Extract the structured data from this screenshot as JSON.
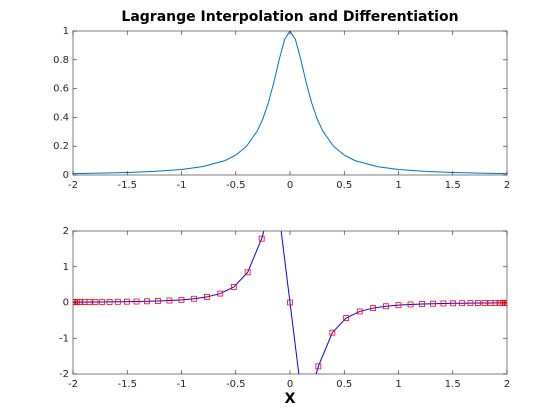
{
  "chart_data": [
    {
      "type": "line",
      "title": "Lagrange Interpolation and Differentiation",
      "x": [
        -2,
        -1.75,
        -1.5,
        -1.25,
        -1,
        -0.8,
        -0.6,
        -0.5,
        -0.4,
        -0.3,
        -0.25,
        -0.2,
        -0.15,
        -0.1,
        -0.05,
        0,
        0.05,
        0.1,
        0.15,
        0.2,
        0.25,
        0.3,
        0.4,
        0.5,
        0.6,
        0.8,
        1,
        1.25,
        1.5,
        1.75,
        2
      ],
      "series": [
        {
          "color": "#0072bd",
          "values": [
            0.0099,
            0.0129,
            0.0175,
            0.025,
            0.0385,
            0.0588,
            0.1,
            0.138,
            0.2,
            0.308,
            0.39,
            0.5,
            0.64,
            0.8,
            0.941,
            1,
            0.941,
            0.8,
            0.64,
            0.5,
            0.39,
            0.308,
            0.2,
            0.138,
            0.1,
            0.0588,
            0.0385,
            0.025,
            0.0175,
            0.0129,
            0.0099
          ]
        }
      ],
      "xlim": [
        -2,
        2
      ],
      "xticks": [
        -2,
        -1.5,
        -1,
        -0.5,
        0,
        0.5,
        1,
        1.5,
        2
      ],
      "ylim": [
        0,
        1
      ],
      "yticks": [
        0,
        0.2,
        0.4,
        0.6,
        0.8,
        1
      ]
    },
    {
      "type": "line",
      "xlabel": "X",
      "x": [
        -2,
        -1.9957,
        -1.9829,
        -1.9616,
        -1.9319,
        -1.8939,
        -1.8478,
        -1.7937,
        -1.7321,
        -1.6629,
        -1.5867,
        -1.5037,
        -1.4142,
        -1.3187,
        -1.2175,
        -1.1111,
        -1,
        -0.8846,
        -0.7654,
        -0.6429,
        -0.5176,
        -0.3902,
        -0.2611,
        -0.1308,
        0,
        0.1308,
        0.2611,
        0.3902,
        0.5176,
        0.6429,
        0.7654,
        0.8846,
        1,
        1.1111,
        1.2175,
        1.3187,
        1.4142,
        1.5037,
        1.5867,
        1.6629,
        1.7321,
        1.7937,
        1.8478,
        1.8939,
        1.9319,
        1.9616,
        1.9829,
        1.9957,
        2
      ],
      "series": [
        {
          "color": "#0000ff",
          "marker": "square",
          "marker_color": "#ff0000",
          "values": [
            0.0098,
            0.0099,
            0.0101,
            0.0104,
            0.0109,
            0.0115,
            0.0124,
            0.0135,
            0.015,
            0.0169,
            0.0194,
            0.0227,
            0.0272,
            0.0333,
            0.042,
            0.0547,
            0.074,
            0.1046,
            0.156,
            0.25,
            0.436,
            0.844,
            1.786,
            3.21,
            0,
            -3.21,
            -1.786,
            -0.844,
            -0.436,
            -0.25,
            -0.156,
            -0.1046,
            -0.074,
            -0.0547,
            -0.042,
            -0.0333,
            -0.0272,
            -0.0227,
            -0.0194,
            -0.0169,
            -0.015,
            -0.0135,
            -0.0124,
            -0.0115,
            -0.0109,
            -0.0104,
            -0.0101,
            -0.0099,
            -0.0098
          ]
        }
      ],
      "xlim": [
        -2,
        2
      ],
      "xticks": [
        -2,
        -1.5,
        -1,
        -0.5,
        0,
        0.5,
        1,
        1.5,
        2
      ],
      "ylim": [
        -2,
        2
      ],
      "yticks": [
        -2,
        -1,
        0,
        1,
        2
      ]
    }
  ]
}
